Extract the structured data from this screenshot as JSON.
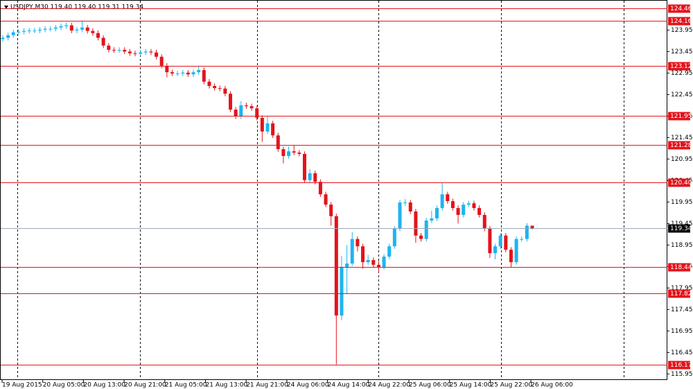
{
  "chart_data": {
    "type": "candlestick",
    "title": "USDJPY,M30  119.40 119.40 119.31 119.34",
    "up_color": "#1eb4f0",
    "down_color": "#e3141b",
    "level_color": "#e3141b",
    "price_color": "#9aa7b4",
    "ylim": [
      115.81,
      124.65
    ],
    "yticks": [
      123.95,
      123.45,
      122.95,
      122.45,
      121.95,
      121.45,
      120.95,
      {
        "value": 120.45,
        "label": "120.45"
      },
      119.95,
      119.45,
      118.95,
      118.45,
      117.95,
      117.45,
      116.95,
      116.45,
      115.95
    ],
    "levels": [
      124.46,
      124.16,
      123.12,
      121.95,
      121.28,
      {
        "value": 120.4,
        "label": "120.40"
      },
      118.44,
      117.82,
      116.17
    ],
    "current_price": 119.34,
    "xlabels": [
      "19 Aug 2015",
      "20 Aug 05:00",
      "20 Aug 13:00",
      "20 Aug 21:00",
      "21 Aug 05:00",
      "21 Aug 13:00",
      "21 Aug 21:00",
      "24 Aug 06:00",
      "24 Aug 14:00",
      "24 Aug 22:00",
      "25 Aug 06:00",
      "25 Aug 14:00",
      "25 Aug 22:00",
      "26 Aug 06:00"
    ],
    "open": [
      123.74,
      123.77,
      123.83,
      123.9,
      123.91,
      123.93,
      123.94,
      123.94,
      123.96,
      123.98,
      123.98,
      124.01,
      124.04,
      124.06,
      123.94,
      123.96,
      124.01,
      123.93,
      123.88,
      123.77,
      123.59,
      123.49,
      123.48,
      123.49,
      123.45,
      123.41,
      123.4,
      123.43,
      123.45,
      123.43,
      123.33,
      123.12,
      122.97,
      122.94,
      122.94,
      122.96,
      122.92,
      122.97,
      123.02,
      122.75,
      122.65,
      122.6,
      122.59,
      122.47,
      122.1,
      121.94,
      122.2,
      122.18,
      122.13,
      121.91,
      121.59,
      121.78,
      121.5,
      121.18,
      121.02,
      121.13,
      121.1,
      121.07,
      120.46,
      120.62,
      120.42,
      120.13,
      119.89,
      119.62,
      117.31,
      118.44,
      118.52,
      119.09,
      118.92,
      118.55,
      118.6,
      118.49,
      118.44,
      118.68,
      118.92,
      119.33,
      119.94,
      119.94,
      119.73,
      119.17,
      119.09,
      119.52,
      119.57,
      119.81,
      120.13,
      119.97,
      119.81,
      119.65,
      119.89,
      119.92,
      119.81,
      119.65,
      119.33,
      118.76,
      118.92,
      119.17,
      118.84,
      118.55,
      119.09,
      119.09,
      119.4
    ],
    "high": [
      123.83,
      123.89,
      123.96,
      123.97,
      123.99,
      124.0,
      124.0,
      124.02,
      124.04,
      124.04,
      124.07,
      124.1,
      124.12,
      124.12,
      124.02,
      124.16,
      124.07,
      123.99,
      123.94,
      123.83,
      123.65,
      123.55,
      123.55,
      123.55,
      123.51,
      123.47,
      123.49,
      123.51,
      123.51,
      123.49,
      123.39,
      123.18,
      123.03,
      123.0,
      123.02,
      123.02,
      123.03,
      123.1,
      123.08,
      122.81,
      122.71,
      122.66,
      122.65,
      122.53,
      122.16,
      122.3,
      122.26,
      122.24,
      122.19,
      121.97,
      121.95,
      121.84,
      121.56,
      121.24,
      121.24,
      121.28,
      121.16,
      121.13,
      120.72,
      120.68,
      120.48,
      120.19,
      119.95,
      119.68,
      118.7,
      118.95,
      119.25,
      119.15,
      118.98,
      118.72,
      118.66,
      118.58,
      118.74,
      118.98,
      119.39,
      120.0,
      120.02,
      120.0,
      119.79,
      119.23,
      119.58,
      119.75,
      119.87,
      120.4,
      120.19,
      120.03,
      119.87,
      119.95,
      119.98,
      119.98,
      119.87,
      119.71,
      119.39,
      118.98,
      119.23,
      119.23,
      118.9,
      119.15,
      119.15,
      119.46,
      119.4
    ],
    "low": [
      123.68,
      123.71,
      123.77,
      123.84,
      123.85,
      123.87,
      123.88,
      123.88,
      123.9,
      123.92,
      123.92,
      123.95,
      123.98,
      123.88,
      123.88,
      123.9,
      123.87,
      123.82,
      123.71,
      123.53,
      123.43,
      123.42,
      123.42,
      123.39,
      123.35,
      123.34,
      123.34,
      123.37,
      123.37,
      123.27,
      123.06,
      122.85,
      122.88,
      122.88,
      122.88,
      122.86,
      122.86,
      122.91,
      122.69,
      122.59,
      122.54,
      122.53,
      122.41,
      122.04,
      121.88,
      121.88,
      122.12,
      122.07,
      121.85,
      121.35,
      121.53,
      121.44,
      121.12,
      120.85,
      120.96,
      121.04,
      121.01,
      120.4,
      120.4,
      120.36,
      120.07,
      119.83,
      119.4,
      116.17,
      117.2,
      117.82,
      118.46,
      118.8,
      118.4,
      118.49,
      118.43,
      118.3,
      118.38,
      118.62,
      118.86,
      119.27,
      119.86,
      119.67,
      119.0,
      119.03,
      119.03,
      119.46,
      119.51,
      119.75,
      119.91,
      119.75,
      119.45,
      119.59,
      119.83,
      119.75,
      119.59,
      119.27,
      118.65,
      118.62,
      118.86,
      118.78,
      118.44,
      118.49,
      119.03,
      119.03,
      119.31
    ],
    "close": [
      123.77,
      123.83,
      123.9,
      123.91,
      123.93,
      123.94,
      123.94,
      123.96,
      123.98,
      123.98,
      124.01,
      124.04,
      124.06,
      123.94,
      123.96,
      124.01,
      123.93,
      123.88,
      123.77,
      123.59,
      123.49,
      123.48,
      123.49,
      123.45,
      123.41,
      123.4,
      123.43,
      123.45,
      123.43,
      123.33,
      123.12,
      122.97,
      122.94,
      122.94,
      122.96,
      122.92,
      122.97,
      123.02,
      122.75,
      122.65,
      122.6,
      122.59,
      122.47,
      122.1,
      121.94,
      122.2,
      122.18,
      122.13,
      121.91,
      121.59,
      121.78,
      121.5,
      121.18,
      121.02,
      121.13,
      121.1,
      121.07,
      120.46,
      120.62,
      120.42,
      120.13,
      119.89,
      119.62,
      117.31,
      118.44,
      118.52,
      119.09,
      118.92,
      118.55,
      118.6,
      118.49,
      118.44,
      118.68,
      118.92,
      119.33,
      119.94,
      119.94,
      119.73,
      119.17,
      119.09,
      119.52,
      119.57,
      119.81,
      120.13,
      119.97,
      119.81,
      119.65,
      119.89,
      119.92,
      119.81,
      119.65,
      119.33,
      118.76,
      118.92,
      119.17,
      118.84,
      118.55,
      119.09,
      119.09,
      119.4,
      119.34
    ]
  }
}
